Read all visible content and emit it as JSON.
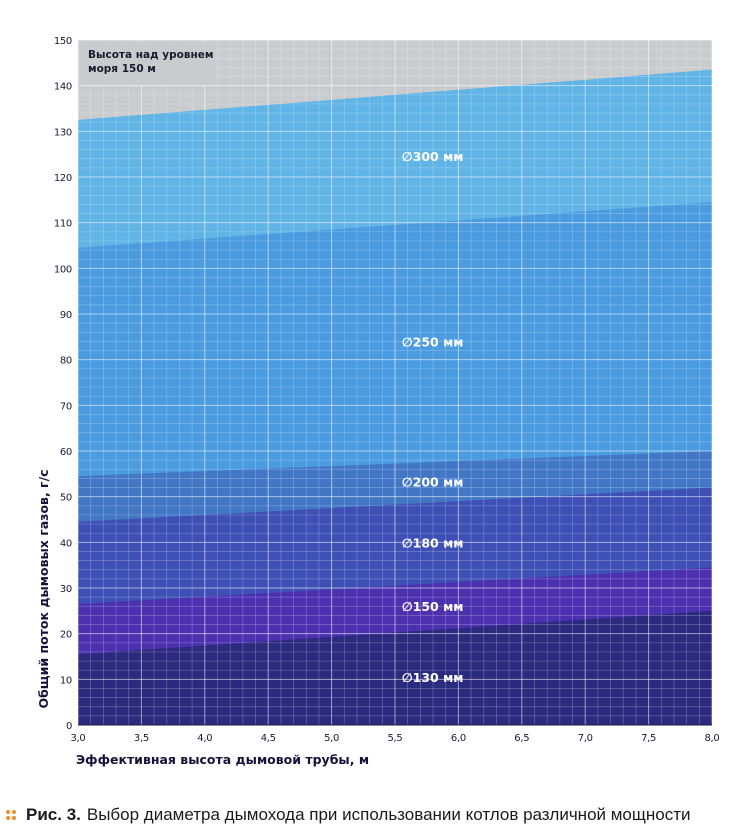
{
  "chart_data": {
    "type": "area",
    "xlabel": "Эффективная высота дымовой трубы, м",
    "ylabel": "Общий поток дымовых газов, г/с",
    "xlim": [
      3.0,
      8.0
    ],
    "ylim": [
      0,
      150
    ],
    "x_ticks": [
      "3,0",
      "3,5",
      "4,0",
      "4,5",
      "5,0",
      "5,5",
      "6,0",
      "6,5",
      "7,0",
      "7,5",
      "8,0"
    ],
    "y_ticks": [
      0,
      10,
      20,
      30,
      40,
      50,
      60,
      70,
      80,
      90,
      100,
      110,
      120,
      130,
      140,
      150
    ],
    "grid": true,
    "annotation": "Высота над уровнем моря 150 м",
    "series": [
      {
        "name": "∅130 мм",
        "x": [
          3.0,
          8.0
        ],
        "y": [
          15.5,
          25
        ],
        "color": "#2b2a7e"
      },
      {
        "name": "∅150 мм",
        "x": [
          3.0,
          8.0
        ],
        "y": [
          26.5,
          34.5
        ],
        "color": "#4b31b0"
      },
      {
        "name": "∅180 мм",
        "x": [
          3.0,
          8.0
        ],
        "y": [
          44.5,
          52
        ],
        "color": "#3e4fb5"
      },
      {
        "name": "∅200 мм",
        "x": [
          3.0,
          8.0
        ],
        "y": [
          54.5,
          60
        ],
        "color": "#4277c6"
      },
      {
        "name": "∅250 мм",
        "x": [
          3.0,
          8.0
        ],
        "y": [
          104.5,
          114.5
        ],
        "color": "#4a9be0"
      },
      {
        "name": "∅300 мм",
        "x": [
          3.0,
          8.0
        ],
        "y": [
          132.5,
          143.5
        ],
        "color": "#60b4e6"
      }
    ]
  },
  "colors": {
    "background_top": "#c9cccf",
    "grid_line": "#ffffff",
    "caption_bullet": "#f28c28"
  },
  "caption": {
    "figure": "Рис. 3.",
    "text": "Выбор диаметра дымохода при использовании котлов различной мощности"
  }
}
